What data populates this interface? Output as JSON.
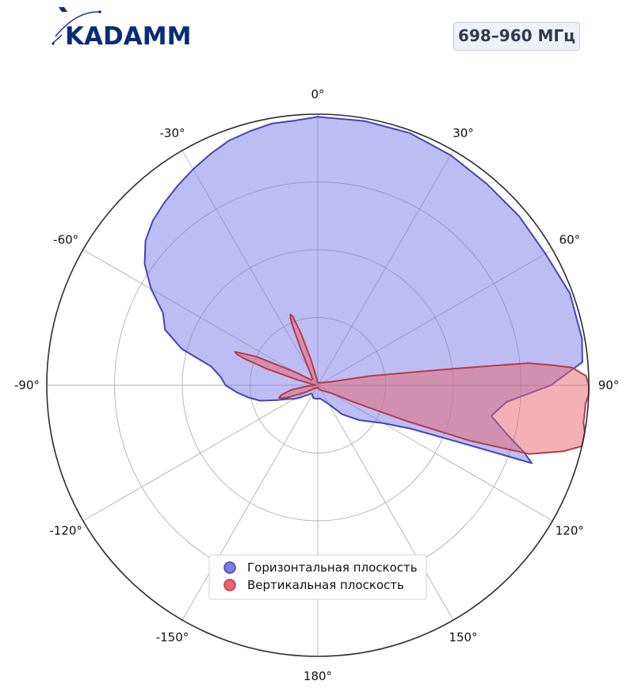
{
  "brand": {
    "name": "KADAMM",
    "color": "#0b2a78"
  },
  "badge": {
    "band": "698–960 МГц"
  },
  "chart_data": {
    "type": "polar-area",
    "angle_unit": "deg",
    "zero_location": "top",
    "direction": "clockwise",
    "angular_ticks": [
      {
        "angle": 0,
        "label": "0°"
      },
      {
        "angle": 30,
        "label": "30°"
      },
      {
        "angle": 60,
        "label": "60°"
      },
      {
        "angle": 90,
        "label": "90°"
      },
      {
        "angle": 120,
        "label": "120°"
      },
      {
        "angle": 150,
        "label": "150°"
      },
      {
        "angle": 180,
        "label": "180°"
      },
      {
        "angle": -150,
        "label": "-150°"
      },
      {
        "angle": -120,
        "label": "-120°"
      },
      {
        "angle": -90,
        "label": "-90°"
      },
      {
        "angle": -60,
        "label": "-60°"
      },
      {
        "angle": -30,
        "label": "-30°"
      }
    ],
    "radial_grid": [
      0.25,
      0.5,
      0.75,
      1.0
    ],
    "radial_tick_labels_shown": false,
    "rmax": 1.0,
    "grid": true,
    "legend_position": "bottom-center",
    "series": [
      {
        "name": "Горизонтальная плоскость",
        "color": "#7b7bea",
        "edge_color": "#4444b4",
        "angles": [
          -180,
          -170,
          -160,
          -150,
          -140,
          -135,
          -130,
          -125,
          -120,
          -115,
          -110,
          -105,
          -100,
          -95,
          -90,
          -85,
          -80,
          -75,
          -70,
          -65,
          -60,
          -55,
          -50,
          -45,
          -40,
          -35,
          -30,
          -25,
          -20,
          -15,
          -10,
          -5,
          0,
          10,
          20,
          30,
          40,
          50,
          60,
          70,
          80,
          85,
          90,
          95,
          100,
          105,
          108,
          110,
          112,
          115,
          120,
          130,
          140,
          150,
          160,
          170,
          180
        ],
        "values": [
          0.05,
          0.05,
          0.05,
          0.04,
          0.04,
          0.05,
          0.06,
          0.08,
          0.1,
          0.12,
          0.16,
          0.22,
          0.26,
          0.3,
          0.34,
          0.36,
          0.4,
          0.52,
          0.6,
          0.63,
          0.71,
          0.78,
          0.83,
          0.86,
          0.88,
          0.9,
          0.92,
          0.94,
          0.96,
          0.97,
          0.98,
          0.98,
          0.99,
          0.99,
          0.99,
          0.98,
          0.97,
          0.97,
          0.97,
          0.99,
          0.99,
          0.98,
          0.86,
          0.7,
          0.65,
          0.73,
          0.8,
          0.84,
          0.56,
          0.38,
          0.28,
          0.2,
          0.14,
          0.08,
          0.06,
          0.05,
          0.05
        ]
      },
      {
        "name": "Вертикальная плоскость",
        "color": "#e8646e",
        "edge_color": "#b43a48",
        "angles": [
          -180,
          -150,
          -130,
          -120,
          -115,
          -112,
          -110,
          -108,
          -105,
          -100,
          -95,
          -90,
          -85,
          -80,
          -75,
          -72,
          -70,
          -69,
          -68,
          -65,
          -60,
          -50,
          -40,
          -30,
          -25,
          -23,
          -22,
          -21,
          -20,
          -18,
          -15,
          -10,
          0,
          30,
          60,
          75,
          80,
          83,
          84,
          85,
          86,
          88,
          90,
          92,
          94,
          96,
          98,
          100,
          103,
          105,
          108,
          110,
          112,
          115,
          120,
          150,
          180
        ],
        "values": [
          0.01,
          0.01,
          0.02,
          0.05,
          0.08,
          0.12,
          0.14,
          0.15,
          0.14,
          0.1,
          0.04,
          0.01,
          0.01,
          0.02,
          0.08,
          0.2,
          0.29,
          0.32,
          0.33,
          0.25,
          0.1,
          0.03,
          0.03,
          0.06,
          0.15,
          0.24,
          0.27,
          0.28,
          0.27,
          0.2,
          0.1,
          0.03,
          0.01,
          0.01,
          0.02,
          0.05,
          0.2,
          0.5,
          0.78,
          0.86,
          0.94,
          0.99,
          1.0,
          1.0,
          0.99,
          0.99,
          0.99,
          1.0,
          1.0,
          0.94,
          0.82,
          0.6,
          0.35,
          0.15,
          0.06,
          0.02,
          0.01
        ]
      }
    ]
  }
}
